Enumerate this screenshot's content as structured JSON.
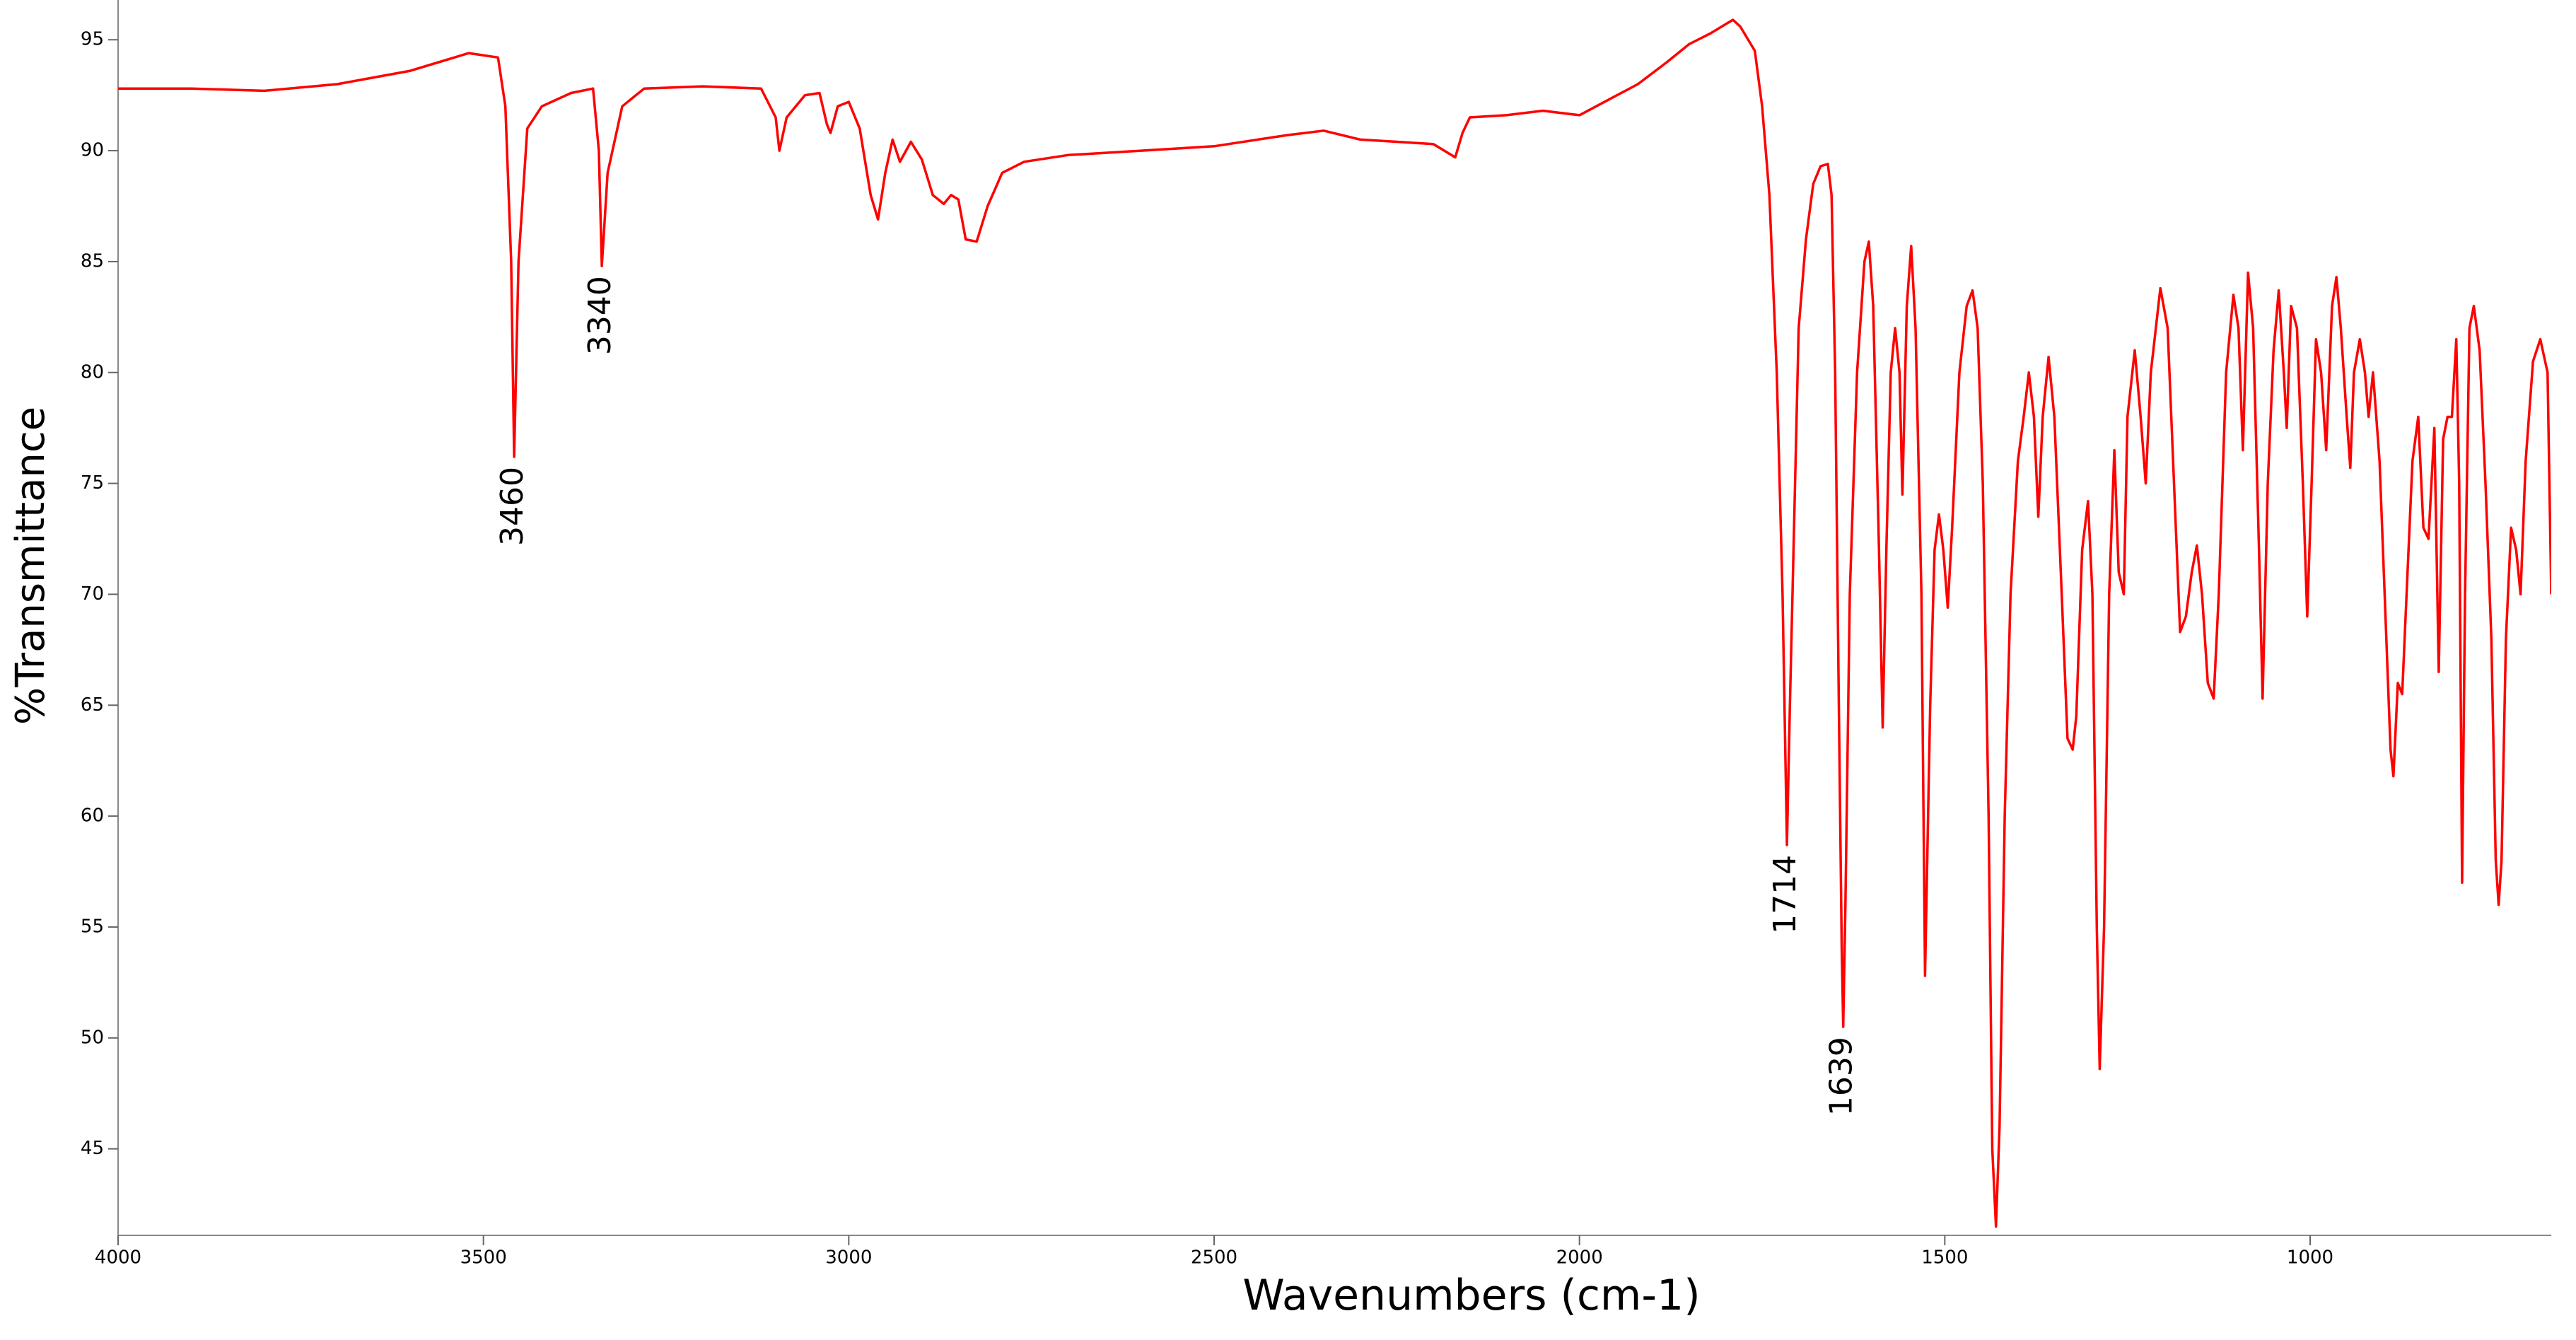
{
  "chart_data": {
    "type": "line",
    "x_label": "Wavenumbers (cm-1)",
    "y_label": "%Transmittance",
    "color": "#ff0000",
    "xlim": [
      4000,
      670
    ],
    "ylim": [
      41.1,
      95.9
    ],
    "xticks": [
      4000,
      3500,
      3000,
      2500,
      2000,
      1500,
      1000
    ],
    "yticks": [
      45,
      50,
      55,
      60,
      65,
      70,
      75,
      80,
      85,
      90,
      95
    ],
    "x": [
      4000,
      3900,
      3800,
      3700,
      3600,
      3520,
      3480,
      3470,
      3462,
      3458,
      3452,
      3440,
      3420,
      3380,
      3350,
      3342,
      3338,
      3330,
      3310,
      3280,
      3200,
      3120,
      3100,
      3095,
      3085,
      3060,
      3040,
      3030,
      3025,
      3015,
      3000,
      2985,
      2970,
      2960,
      2950,
      2940,
      2930,
      2915,
      2900,
      2885,
      2870,
      2860,
      2850,
      2840,
      2825,
      2810,
      2790,
      2760,
      2700,
      2600,
      2500,
      2400,
      2350,
      2300,
      2250,
      2200,
      2170,
      2160,
      2150,
      2100,
      2050,
      2000,
      1960,
      1920,
      1880,
      1850,
      1820,
      1790,
      1780,
      1760,
      1750,
      1740,
      1730,
      1722,
      1716,
      1712,
      1700,
      1690,
      1680,
      1670,
      1660,
      1655,
      1650,
      1645,
      1641,
      1639,
      1636,
      1630,
      1620,
      1610,
      1604,
      1598,
      1590,
      1585,
      1580,
      1574,
      1568,
      1562,
      1558,
      1552,
      1546,
      1540,
      1532,
      1527,
      1520,
      1514,
      1508,
      1502,
      1496,
      1490,
      1480,
      1470,
      1462,
      1455,
      1448,
      1440,
      1435,
      1430,
      1425,
      1418,
      1410,
      1400,
      1392,
      1385,
      1378,
      1372,
      1366,
      1358,
      1350,
      1340,
      1332,
      1325,
      1320,
      1312,
      1304,
      1298,
      1292,
      1288,
      1282,
      1275,
      1268,
      1262,
      1255,
      1250,
      1240,
      1232,
      1225,
      1218,
      1205,
      1195,
      1185,
      1178,
      1170,
      1162,
      1155,
      1148,
      1140,
      1132,
      1125,
      1115,
      1105,
      1098,
      1092,
      1085,
      1078,
      1070,
      1065,
      1058,
      1050,
      1043,
      1036,
      1032,
      1026,
      1018,
      1010,
      1004,
      998,
      992,
      985,
      978,
      970,
      964,
      958,
      950,
      945,
      940,
      932,
      925,
      920,
      914,
      905,
      898,
      890,
      886,
      880,
      874,
      868,
      860,
      852,
      845,
      838,
      830,
      824,
      818,
      812,
      806,
      800,
      796,
      792,
      788,
      782,
      776,
      768,
      760,
      752,
      746,
      742,
      738,
      732,
      725,
      718,
      712,
      705,
      695,
      685,
      675,
      670
    ],
    "values": [
      92.8,
      92.8,
      92.7,
      93.0,
      93.6,
      94.4,
      94.2,
      92,
      85,
      76.2,
      85,
      91,
      92,
      92.6,
      92.8,
      90,
      84.8,
      89,
      92,
      92.8,
      92.9,
      92.8,
      91.5,
      90.0,
      91.5,
      92.5,
      92.6,
      91.2,
      90.8,
      92,
      92.2,
      91,
      88,
      86.9,
      89,
      90.5,
      89.5,
      90.4,
      89.6,
      88,
      87.6,
      88,
      87.8,
      86,
      85.9,
      87.5,
      89,
      89.5,
      89.8,
      90.0,
      90.2,
      90.7,
      90.9,
      90.5,
      90.4,
      90.3,
      89.7,
      90.8,
      91.5,
      91.6,
      91.8,
      91.6,
      92.3,
      93.0,
      94,
      94.8,
      95.3,
      95.9,
      95.6,
      94.5,
      92,
      88,
      80,
      70,
      58.7,
      65,
      82,
      86,
      88.5,
      89.3,
      89.4,
      88,
      80,
      65,
      54,
      50.5,
      56,
      70,
      80,
      85,
      85.9,
      83,
      72,
      64,
      72,
      80,
      82,
      80,
      74.5,
      83,
      85.7,
      82,
      70,
      52.8,
      65,
      72,
      73.6,
      72,
      69.4,
      73,
      80,
      83,
      83.7,
      82,
      75,
      60,
      45,
      41.5,
      46,
      60,
      70,
      76,
      78,
      80,
      78,
      73.5,
      78,
      80.7,
      78,
      70,
      63.5,
      63,
      64.5,
      72,
      74.2,
      70,
      55,
      48.6,
      55,
      70,
      76.5,
      71,
      70,
      78,
      81,
      78,
      75,
      80,
      83.8,
      82,
      74,
      68.3,
      69,
      71,
      72.2,
      70,
      66,
      65.3,
      70,
      80,
      83.5,
      82,
      76.5,
      84.5,
      82,
      72,
      65.3,
      75,
      81,
      83.7,
      80,
      77.5,
      83,
      82,
      75,
      69,
      75,
      81.5,
      80,
      76.5,
      83,
      84.3,
      82,
      78,
      75.7,
      80,
      81.5,
      80,
      78,
      80,
      76,
      70,
      63,
      61.8,
      66,
      65.5,
      70,
      76,
      78,
      73,
      72.5,
      77.5,
      66.5,
      77,
      78,
      78,
      81.5,
      75,
      57,
      70,
      82,
      83,
      81,
      75,
      68,
      58,
      56,
      58,
      68,
      73,
      72,
      70,
      76,
      80.5,
      81.5,
      80,
      70
    ],
    "annotations": [
      {
        "label": "3460",
        "x": 3458,
        "y": 76.2
      },
      {
        "label": "3340",
        "x": 3338,
        "y": 84.8
      },
      {
        "label": "1714",
        "x": 1716,
        "y": 58.7
      },
      {
        "label": "1639",
        "x": 1639,
        "y": 50.5
      }
    ]
  }
}
